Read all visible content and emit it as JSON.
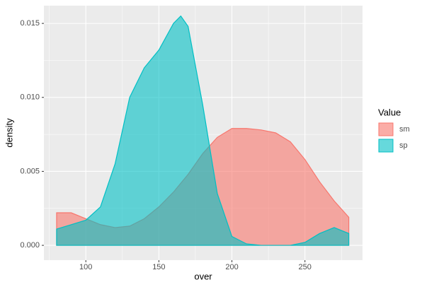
{
  "chart_data": {
    "type": "area",
    "x_label": "over",
    "y_label": "density",
    "x": [
      80,
      90,
      100,
      110,
      120,
      130,
      140,
      150,
      160,
      165,
      170,
      180,
      190,
      200,
      210,
      220,
      230,
      240,
      250,
      260,
      270,
      280
    ],
    "series": [
      {
        "name": "sm",
        "color": "#F8766D",
        "values": [
          0.0022,
          0.0022,
          0.0018,
          0.0014,
          0.0012,
          0.0013,
          0.0018,
          0.0026,
          0.0036,
          0.0042,
          0.0048,
          0.0062,
          0.0073,
          0.0079,
          0.0079,
          0.0078,
          0.0076,
          0.007,
          0.0058,
          0.0043,
          0.003,
          0.0019
        ]
      },
      {
        "name": "sp",
        "color": "#00BFC4",
        "values": [
          0.0011,
          0.0014,
          0.0017,
          0.0026,
          0.0055,
          0.01,
          0.012,
          0.0132,
          0.015,
          0.0155,
          0.0148,
          0.0095,
          0.0035,
          0.0006,
          0.0001,
          0,
          0,
          0,
          0.0002,
          0.0008,
          0.0012,
          0.0008
        ]
      }
    ],
    "legend_title": "Value",
    "legend": "right",
    "xlim": [
      71.3,
      289.4
    ],
    "xticks": [
      100,
      150,
      200,
      250
    ],
    "ylim": [
      -0.001,
      0.0162
    ],
    "yticks": [
      {
        "value": 0,
        "label": "0.000"
      },
      {
        "value": 0.005,
        "label": "0.005"
      },
      {
        "value": 0.01,
        "label": "0.010"
      },
      {
        "value": 0.015,
        "label": "0.015"
      }
    ],
    "grid": true
  }
}
